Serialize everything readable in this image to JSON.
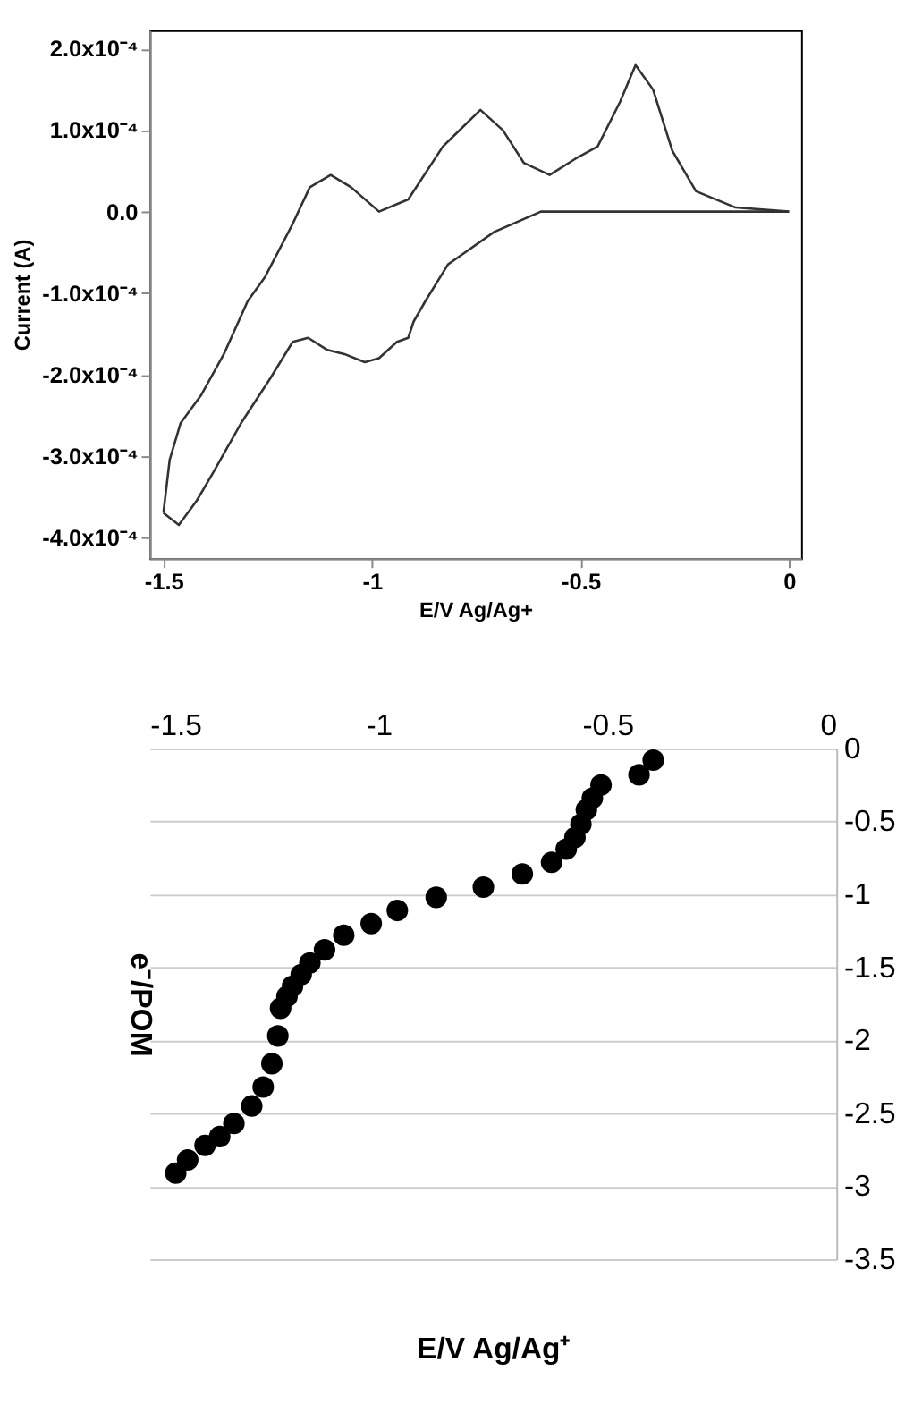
{
  "chart_data": [
    {
      "type": "line",
      "xlabel": "E/V Ag/Ag+",
      "ylabel": "Current (A)",
      "xlim": [
        -1.533,
        0.029
      ],
      "ylim": [
        -0.000426,
        0.000223
      ],
      "xticks": [
        -1.5,
        -1,
        -0.5,
        0
      ],
      "yticks": [
        {
          "value": 0.0002,
          "label": "2.0x10⁻⁴"
        },
        {
          "value": 0.0001,
          "label": "1.0x10⁻⁴"
        },
        {
          "value": 0,
          "label": "0.0"
        },
        {
          "value": -0.0001,
          "label": "-1.0x10⁻⁴"
        },
        {
          "value": -0.0002,
          "label": "-2.0x10⁻⁴"
        },
        {
          "value": -0.0003,
          "label": "-3.0x10⁻⁴"
        },
        {
          "value": -0.0004,
          "label": "-4.0x10⁻⁴"
        }
      ],
      "grid": false,
      "legend": false,
      "series": [
        {
          "color": "#333333",
          "x": [
            -1.5,
            -1.463,
            -1.42,
            -1.38,
            -1.314,
            -1.244,
            -1.19,
            -1.153,
            -1.107,
            -1.066,
            -1.017,
            -0.983,
            -0.94,
            -0.913,
            -0.9,
            -0.872,
            -0.818,
            -0.707,
            -0.595,
            -0.3,
            0
          ],
          "values": [
            -0.00037,
            -0.000385,
            -0.000355,
            -0.00032,
            -0.00026,
            -0.000205,
            -0.00016,
            -0.000155,
            -0.00017,
            -0.000175,
            -0.000185,
            -0.00018,
            -0.00016,
            -0.000155,
            -0.000135,
            -0.00011,
            -6.5e-05,
            -2.5e-05,
            0,
            0,
            0
          ]
        },
        {
          "color": "#333333",
          "x": [
            -1.5,
            -1.485,
            -1.459,
            -1.409,
            -1.355,
            -1.298,
            -1.256,
            -1.19,
            -1.149,
            -1.099,
            -1.05,
            -0.983,
            -0.913,
            -0.83,
            -0.74,
            -0.686,
            -0.636,
            -0.574,
            -0.512,
            -0.459,
            -0.405,
            -0.368,
            -0.326,
            -0.28,
            -0.223,
            -0.128,
            0
          ],
          "values": [
            -0.00037,
            -0.000305,
            -0.00026,
            -0.000225,
            -0.000175,
            -0.00011,
            -8e-05,
            -1.5e-05,
            3e-05,
            4.5e-05,
            3e-05,
            0,
            1.5e-05,
            8e-05,
            0.000125,
            0.0001,
            6e-05,
            4.5e-05,
            6.5e-05,
            8e-05,
            0.000135,
            0.00018,
            0.00015,
            7.5e-05,
            2.5e-05,
            5e-06,
            0
          ]
        }
      ]
    },
    {
      "type": "scatter",
      "xlabel": "E/V Ag/Ag⁺",
      "ylabel": "e⁻/POM",
      "xlim": [
        -1.5,
        0
      ],
      "ylim": [
        -3.5,
        0
      ],
      "xticks": [
        -1.5,
        -1,
        -0.5,
        0
      ],
      "yticks": [
        0,
        -0.5,
        -1,
        -1.5,
        -2,
        -2.5,
        -3,
        -3.5
      ],
      "grid": "y",
      "legend": false,
      "marker": "circle",
      "series": [
        {
          "color": "#000000",
          "x": [
            -1.443,
            -1.417,
            -1.379,
            -1.347,
            -1.316,
            -1.277,
            -1.252,
            -1.233,
            -1.22,
            -1.214,
            -1.2,
            -1.188,
            -1.169,
            -1.15,
            -1.118,
            -1.076,
            -1.016,
            -0.959,
            -0.874,
            -0.771,
            -0.686,
            -0.622,
            -0.59,
            -0.571,
            -0.558,
            -0.546,
            -0.533,
            -0.514,
            -0.431,
            -0.4
          ],
          "values": [
            -2.91,
            -2.82,
            -2.72,
            -2.66,
            -2.57,
            -2.45,
            -2.32,
            -2.16,
            -1.97,
            -1.78,
            -1.7,
            -1.63,
            -1.55,
            -1.47,
            -1.38,
            -1.28,
            -1.2,
            -1.11,
            -1.02,
            -0.95,
            -0.86,
            -0.78,
            -0.69,
            -0.61,
            -0.52,
            -0.42,
            -0.34,
            -0.25,
            -0.18,
            -0.08
          ]
        }
      ]
    }
  ]
}
